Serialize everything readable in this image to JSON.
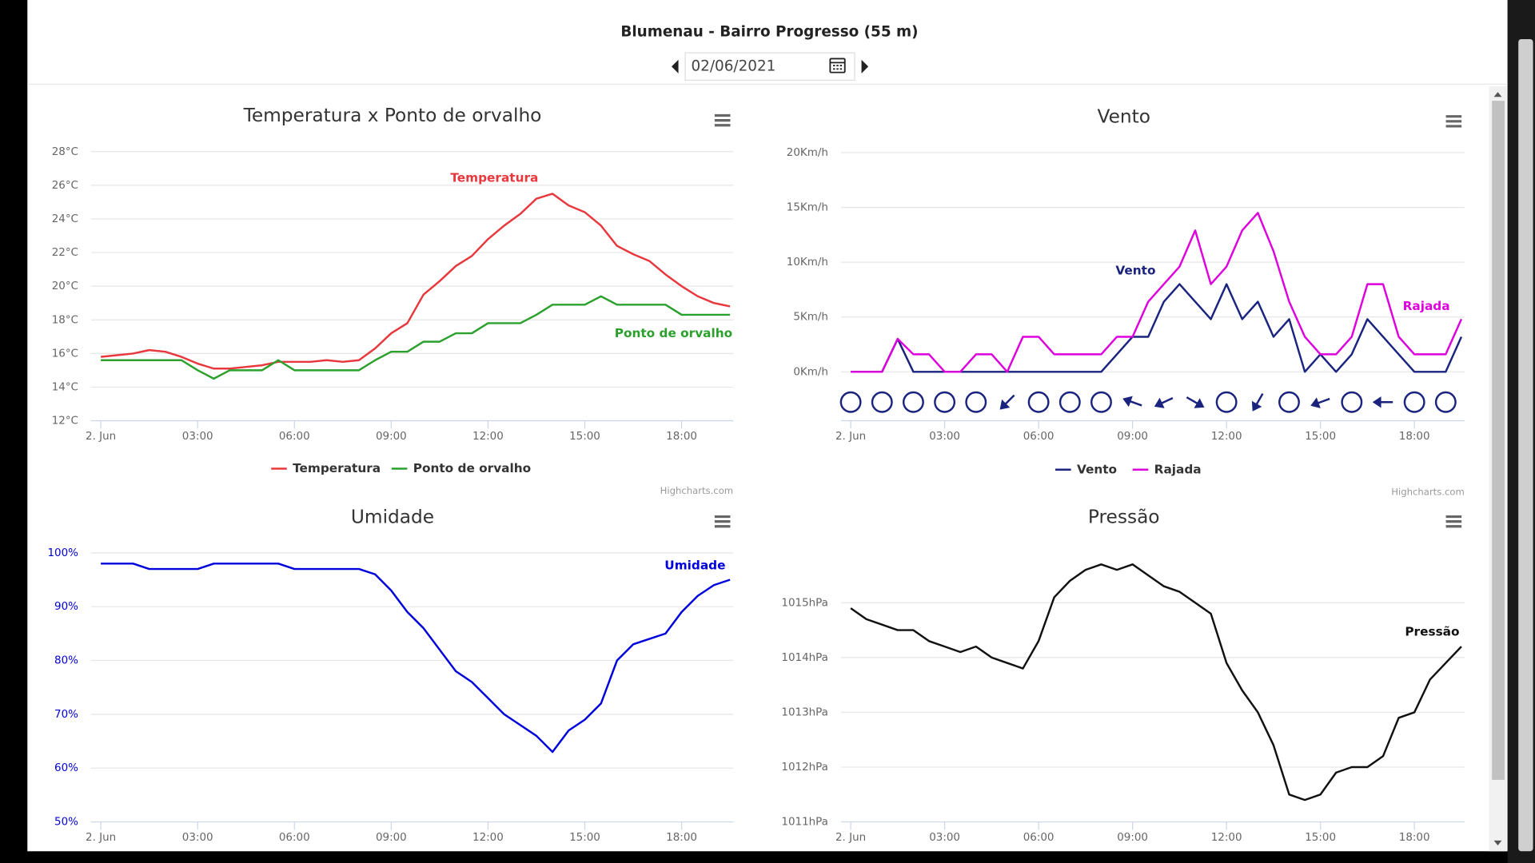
{
  "header": {
    "title": "Blumenau - Bairro Progresso (55 m)",
    "date": "02/06/2021"
  },
  "chart_data": [
    {
      "type": "line",
      "title": "Temperatura x Ponto de orvalho",
      "legend": "bottom",
      "credits": "Highcharts.com",
      "grid": true,
      "ytick_color": "#666666",
      "x": [
        0,
        0.5,
        1,
        1.5,
        2,
        2.5,
        3,
        3.5,
        4,
        4.5,
        5,
        5.5,
        6,
        6.5,
        7,
        7.5,
        8,
        8.5,
        9,
        9.5,
        10,
        10.5,
        11,
        11.5,
        12,
        12.5,
        13,
        13.5,
        14,
        14.5,
        15,
        15.5,
        16,
        16.5,
        17,
        17.5,
        18,
        18.5,
        19,
        19.5
      ],
      "xlim": [
        0,
        19.6
      ],
      "xticks": [
        {
          "value": 0,
          "label": "2. Jun"
        },
        {
          "value": 3,
          "label": "03:00"
        },
        {
          "value": 6,
          "label": "06:00"
        },
        {
          "value": 9,
          "label": "09:00"
        },
        {
          "value": 12,
          "label": "12:00"
        },
        {
          "value": 15,
          "label": "15:00"
        },
        {
          "value": 18,
          "label": "18:00"
        }
      ],
      "ylim": [
        12,
        28
      ],
      "yticks": [
        {
          "value": 12,
          "label": "12°C"
        },
        {
          "value": 14,
          "label": "14°C"
        },
        {
          "value": 16,
          "label": "16°C"
        },
        {
          "value": 18,
          "label": "18°C"
        },
        {
          "value": 20,
          "label": "20°C"
        },
        {
          "value": 22,
          "label": "22°C"
        },
        {
          "value": 24,
          "label": "24°C"
        },
        {
          "value": 26,
          "label": "26°C"
        },
        {
          "value": 28,
          "label": "28°C"
        }
      ],
      "series": [
        {
          "name": "Temperatura",
          "color": "#e8383d",
          "values": [
            15.8,
            15.9,
            16.0,
            16.2,
            16.1,
            15.8,
            15.4,
            15.1,
            15.1,
            15.2,
            15.3,
            15.5,
            15.5,
            15.5,
            15.6,
            15.5,
            15.6,
            16.3,
            17.2,
            17.8,
            19.5,
            20.3,
            21.2,
            21.8,
            22.8,
            23.6,
            24.3,
            25.2,
            25.5,
            24.8,
            24.4,
            23.6,
            22.4,
            21.9,
            21.5,
            20.7,
            20.0,
            19.4,
            19.0,
            18.8
          ]
        },
        {
          "name": "Ponto de orvalho",
          "color": "#2ca02c",
          "values": [
            15.6,
            15.6,
            15.6,
            15.6,
            15.6,
            15.6,
            15.0,
            14.5,
            15.0,
            15.0,
            15.0,
            15.6,
            15.0,
            15.0,
            15.0,
            15.0,
            15.0,
            15.6,
            16.1,
            16.1,
            16.7,
            16.7,
            17.2,
            17.2,
            17.8,
            17.8,
            17.8,
            18.3,
            18.9,
            18.9,
            18.9,
            19.4,
            18.9,
            18.9,
            18.9,
            18.9,
            18.3,
            18.3,
            18.3,
            18.3
          ]
        }
      ]
    },
    {
      "type": "line",
      "title": "Vento",
      "legend": "bottom",
      "credits": "Highcharts.com",
      "grid": true,
      "ytick_color": "#666666",
      "x": [
        0,
        0.5,
        1,
        1.5,
        2,
        2.5,
        3,
        3.5,
        4,
        4.5,
        5,
        5.5,
        6,
        6.5,
        7,
        7.5,
        8,
        8.5,
        9,
        9.5,
        10,
        10.5,
        11,
        11.5,
        12,
        12.5,
        13,
        13.5,
        14,
        14.5,
        15,
        15.5,
        16,
        16.5,
        17,
        17.5,
        18,
        18.5,
        19,
        19.5
      ],
      "xlim": [
        0,
        19.6
      ],
      "xticks": [
        {
          "value": 0,
          "label": "2. Jun"
        },
        {
          "value": 3,
          "label": "03:00"
        },
        {
          "value": 6,
          "label": "06:00"
        },
        {
          "value": 9,
          "label": "09:00"
        },
        {
          "value": 12,
          "label": "12:00"
        },
        {
          "value": 15,
          "label": "15:00"
        },
        {
          "value": 18,
          "label": "18:00"
        }
      ],
      "ylim": [
        0,
        20
      ],
      "yticks": [
        {
          "value": 0,
          "label": "0Km/h"
        },
        {
          "value": 5,
          "label": "5Km/h"
        },
        {
          "value": 10,
          "label": "10Km/h"
        },
        {
          "value": 15,
          "label": "15Km/h"
        },
        {
          "value": 20,
          "label": "20Km/h"
        }
      ],
      "series": [
        {
          "name": "Vento",
          "color": "#1a237e",
          "values": [
            0,
            0,
            0,
            3,
            0,
            0,
            0,
            0,
            0,
            0,
            0,
            0,
            0,
            0,
            0,
            0,
            0,
            1.6,
            3.2,
            3.2,
            6.4,
            8,
            6.4,
            4.8,
            8,
            4.8,
            6.4,
            3.2,
            4.8,
            0,
            1.6,
            0,
            1.6,
            4.8,
            3.2,
            1.6,
            0,
            0,
            0,
            3.2
          ]
        },
        {
          "name": "Rajada",
          "color": "#dd00dd",
          "values": [
            0,
            0,
            0,
            3,
            1.6,
            1.6,
            0,
            0,
            1.6,
            1.6,
            0,
            3.2,
            3.2,
            1.6,
            1.6,
            1.6,
            1.6,
            3.2,
            3.2,
            6.4,
            8,
            9.6,
            12.9,
            8,
            9.6,
            12.9,
            14.5,
            11,
            6.4,
            3.2,
            1.6,
            1.6,
            3.2,
            8,
            8,
            3.2,
            1.6,
            1.6,
            1.6,
            4.8
          ]
        }
      ],
      "direction_x": [
        0,
        1,
        2,
        3,
        4,
        5,
        6,
        7,
        8,
        9,
        10,
        11,
        12,
        13,
        14,
        15,
        16,
        17,
        18,
        19
      ],
      "directions": [
        null,
        null,
        null,
        null,
        null,
        135,
        null,
        null,
        null,
        200,
        155,
        30,
        null,
        120,
        null,
        160,
        null,
        180,
        null,
        null
      ]
    },
    {
      "type": "line",
      "title": "Umidade",
      "grid": true,
      "ytick_color": "#0000dd",
      "x": [
        0,
        0.5,
        1,
        1.5,
        2,
        2.5,
        3,
        3.5,
        4,
        4.5,
        5,
        5.5,
        6,
        6.5,
        7,
        7.5,
        8,
        8.5,
        9,
        9.5,
        10,
        10.5,
        11,
        11.5,
        12,
        12.5,
        13,
        13.5,
        14,
        14.5,
        15,
        15.5,
        16,
        16.5,
        17,
        17.5,
        18,
        18.5,
        19,
        19.5
      ],
      "xlim": [
        0,
        19.6
      ],
      "xticks": [
        {
          "value": 0,
          "label": "2. Jun"
        },
        {
          "value": 3,
          "label": "03:00"
        },
        {
          "value": 6,
          "label": "06:00"
        },
        {
          "value": 9,
          "label": "09:00"
        },
        {
          "value": 12,
          "label": "12:00"
        },
        {
          "value": 15,
          "label": "15:00"
        },
        {
          "value": 18,
          "label": "18:00"
        }
      ],
      "ylim": [
        50,
        100
      ],
      "yticks": [
        {
          "value": 50,
          "label": "50%"
        },
        {
          "value": 60,
          "label": "60%"
        },
        {
          "value": 70,
          "label": "70%"
        },
        {
          "value": 80,
          "label": "80%"
        },
        {
          "value": 90,
          "label": "90%"
        },
        {
          "value": 100,
          "label": "100%"
        }
      ],
      "series": [
        {
          "name": "Umidade",
          "color": "#0000dd",
          "values": [
            98,
            98,
            98,
            97,
            97,
            97,
            97,
            98,
            98,
            98,
            98,
            98,
            97,
            97,
            97,
            97,
            97,
            96,
            93,
            89,
            86,
            82,
            78,
            76,
            73,
            70,
            68,
            66,
            63,
            67,
            69,
            72,
            80,
            83,
            84,
            85,
            89,
            92,
            94,
            95
          ]
        }
      ]
    },
    {
      "type": "line",
      "title": "Pressão",
      "grid": true,
      "ytick_color": "#666666",
      "x": [
        0,
        0.5,
        1,
        1.5,
        2,
        2.5,
        3,
        3.5,
        4,
        4.5,
        5,
        5.5,
        6,
        6.5,
        7,
        7.5,
        8,
        8.5,
        9,
        9.5,
        10,
        10.5,
        11,
        11.5,
        12,
        12.5,
        13,
        13.5,
        14,
        14.5,
        15,
        15.5,
        16,
        16.5,
        17,
        17.5,
        18,
        18.5,
        19,
        19.5
      ],
      "xlim": [
        0,
        19.6
      ],
      "xticks": [
        {
          "value": 0,
          "label": "2. Jun"
        },
        {
          "value": 3,
          "label": "03:00"
        },
        {
          "value": 6,
          "label": "06:00"
        },
        {
          "value": 9,
          "label": "09:00"
        },
        {
          "value": 12,
          "label": "12:00"
        },
        {
          "value": 15,
          "label": "15:00"
        },
        {
          "value": 18,
          "label": "18:00"
        }
      ],
      "ylim": [
        1011,
        1016
      ],
      "yticks": [
        {
          "value": 1011,
          "label": "1011hPa"
        },
        {
          "value": 1012,
          "label": "1012hPa"
        },
        {
          "value": 1013,
          "label": "1013hPa"
        },
        {
          "value": 1014,
          "label": "1014hPa"
        },
        {
          "value": 1015,
          "label": "1015hPa"
        }
      ],
      "series": [
        {
          "name": "Pressão",
          "color": "#111111",
          "values": [
            1014.9,
            1014.7,
            1014.6,
            1014.5,
            1014.5,
            1014.3,
            1014.2,
            1014.1,
            1014.2,
            1014.0,
            1013.9,
            1013.8,
            1014.3,
            1015.1,
            1015.4,
            1015.6,
            1015.7,
            1015.6,
            1015.7,
            1015.5,
            1015.3,
            1015.2,
            1015.0,
            1014.8,
            1013.9,
            1013.4,
            1013.0,
            1012.4,
            1011.5,
            1011.4,
            1011.5,
            1011.9,
            1012.0,
            1012.0,
            1012.2,
            1012.9,
            1013.0,
            1013.6,
            1013.9,
            1014.2
          ]
        }
      ]
    }
  ]
}
